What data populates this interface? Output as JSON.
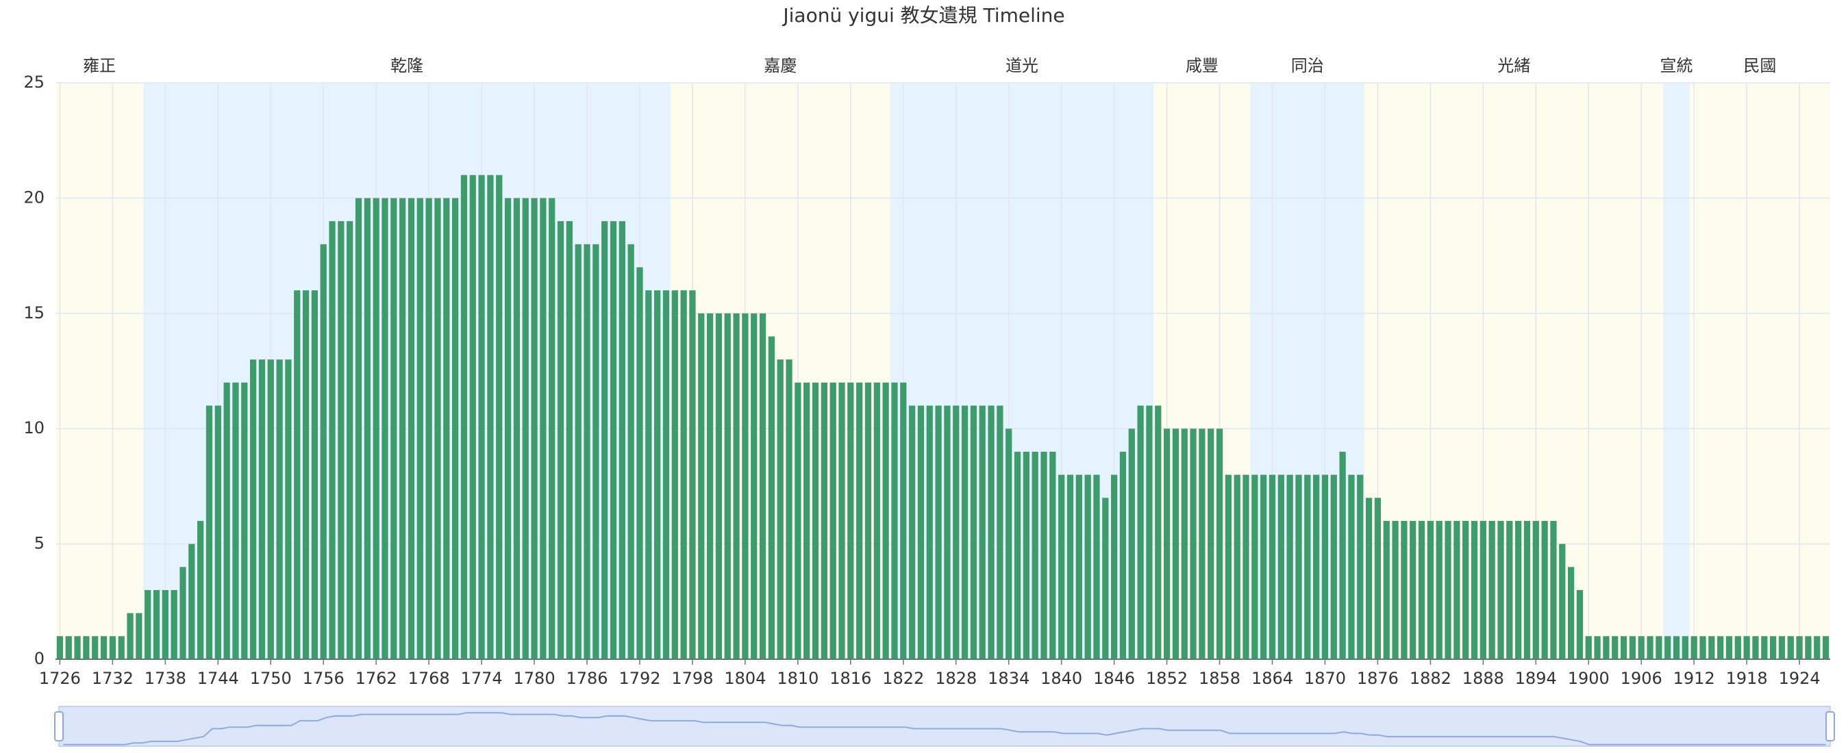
{
  "chart_data": {
    "type": "bar",
    "title": "Jiaonü yigui 教女遺規 Timeline",
    "color": "#3d9b6c",
    "categories": [
      1726,
      1727,
      1728,
      1729,
      1730,
      1731,
      1732,
      1733,
      1734,
      1735,
      1736,
      1737,
      1738,
      1739,
      1740,
      1741,
      1742,
      1743,
      1744,
      1745,
      1746,
      1747,
      1748,
      1749,
      1750,
      1751,
      1752,
      1753,
      1754,
      1755,
      1756,
      1757,
      1758,
      1759,
      1760,
      1761,
      1762,
      1763,
      1764,
      1765,
      1766,
      1767,
      1768,
      1769,
      1770,
      1771,
      1772,
      1773,
      1774,
      1775,
      1776,
      1777,
      1778,
      1779,
      1780,
      1781,
      1782,
      1783,
      1784,
      1785,
      1786,
      1787,
      1788,
      1789,
      1790,
      1791,
      1792,
      1793,
      1794,
      1795,
      1796,
      1797,
      1798,
      1799,
      1800,
      1801,
      1802,
      1803,
      1804,
      1805,
      1806,
      1807,
      1808,
      1809,
      1810,
      1811,
      1812,
      1813,
      1814,
      1815,
      1816,
      1817,
      1818,
      1819,
      1820,
      1821,
      1822,
      1823,
      1824,
      1825,
      1826,
      1827,
      1828,
      1829,
      1830,
      1831,
      1832,
      1833,
      1834,
      1835,
      1836,
      1837,
      1838,
      1839,
      1840,
      1841,
      1842,
      1843,
      1844,
      1845,
      1846,
      1847,
      1848,
      1849,
      1850,
      1851,
      1852,
      1853,
      1854,
      1855,
      1856,
      1857,
      1858,
      1859,
      1860,
      1861,
      1862,
      1863,
      1864,
      1865,
      1866,
      1867,
      1868,
      1869,
      1870,
      1871,
      1872,
      1873,
      1874,
      1875,
      1876,
      1877,
      1878,
      1879,
      1880,
      1881,
      1882,
      1883,
      1884,
      1885,
      1886,
      1887,
      1888,
      1889,
      1890,
      1891,
      1892,
      1893,
      1894,
      1895,
      1896,
      1897,
      1898,
      1899,
      1900,
      1901,
      1902,
      1903,
      1904,
      1905,
      1906,
      1907,
      1908,
      1909,
      1910,
      1911,
      1912,
      1913,
      1914,
      1915,
      1916,
      1917,
      1918,
      1919,
      1920,
      1921,
      1922,
      1923,
      1924,
      1925,
      1926,
      1927
    ],
    "values": [
      1,
      1,
      1,
      1,
      1,
      1,
      1,
      1,
      2,
      2,
      3,
      3,
      3,
      3,
      4,
      5,
      6,
      11,
      11,
      12,
      12,
      12,
      13,
      13,
      13,
      13,
      13,
      16,
      16,
      16,
      18,
      19,
      19,
      19,
      20,
      20,
      20,
      20,
      20,
      20,
      20,
      20,
      20,
      20,
      20,
      20,
      21,
      21,
      21,
      21,
      21,
      20,
      20,
      20,
      20,
      20,
      20,
      19,
      19,
      18,
      18,
      18,
      19,
      19,
      19,
      18,
      17,
      16,
      16,
      16,
      16,
      16,
      16,
      15,
      15,
      15,
      15,
      15,
      15,
      15,
      15,
      14,
      13,
      13,
      12,
      12,
      12,
      12,
      12,
      12,
      12,
      12,
      12,
      12,
      12,
      12,
      12,
      11,
      11,
      11,
      11,
      11,
      11,
      11,
      11,
      11,
      11,
      11,
      10,
      9,
      9,
      9,
      9,
      9,
      8,
      8,
      8,
      8,
      8,
      7,
      8,
      9,
      10,
      11,
      11,
      11,
      10,
      10,
      10,
      10,
      10,
      10,
      10,
      8,
      8,
      8,
      8,
      8,
      8,
      8,
      8,
      8,
      8,
      8,
      8,
      8,
      9,
      8,
      8,
      7,
      7,
      6,
      6,
      6,
      6,
      6,
      6,
      6,
      6,
      6,
      6,
      6,
      6,
      6,
      6,
      6,
      6,
      6,
      6,
      6,
      6,
      5,
      4,
      3,
      1,
      1,
      1,
      1,
      1,
      1,
      1,
      1,
      1,
      1,
      1,
      1,
      1,
      1,
      1,
      1,
      1,
      1,
      1,
      1,
      1,
      1,
      1,
      1,
      1,
      1,
      1,
      1
    ],
    "ylim": [
      0,
      25
    ],
    "yticks": [
      0,
      5,
      10,
      15,
      20,
      25
    ],
    "grid": true,
    "eras": [
      {
        "name": "雍正",
        "start": 1726,
        "end": 1735,
        "color": "#fdfdee"
      },
      {
        "name": "乾隆",
        "start": 1736,
        "end": 1795,
        "color": "#e4f3fd"
      },
      {
        "name": "嘉慶",
        "start": 1796,
        "end": 1820,
        "color": "#fdfdee"
      },
      {
        "name": "道光",
        "start": 1821,
        "end": 1850,
        "color": "#e4f3fd"
      },
      {
        "name": "咸豐",
        "start": 1851,
        "end": 1861,
        "color": "#fdfdee"
      },
      {
        "name": "同治",
        "start": 1862,
        "end": 1874,
        "color": "#e4f3fd"
      },
      {
        "name": "光緒",
        "start": 1875,
        "end": 1908,
        "color": "#fdfdee"
      },
      {
        "name": "宣統",
        "start": 1909,
        "end": 1911,
        "color": "#e4f3fd"
      },
      {
        "name": "民國",
        "start": 1912,
        "end": 1927,
        "color": "#fdfdee"
      }
    ]
  }
}
